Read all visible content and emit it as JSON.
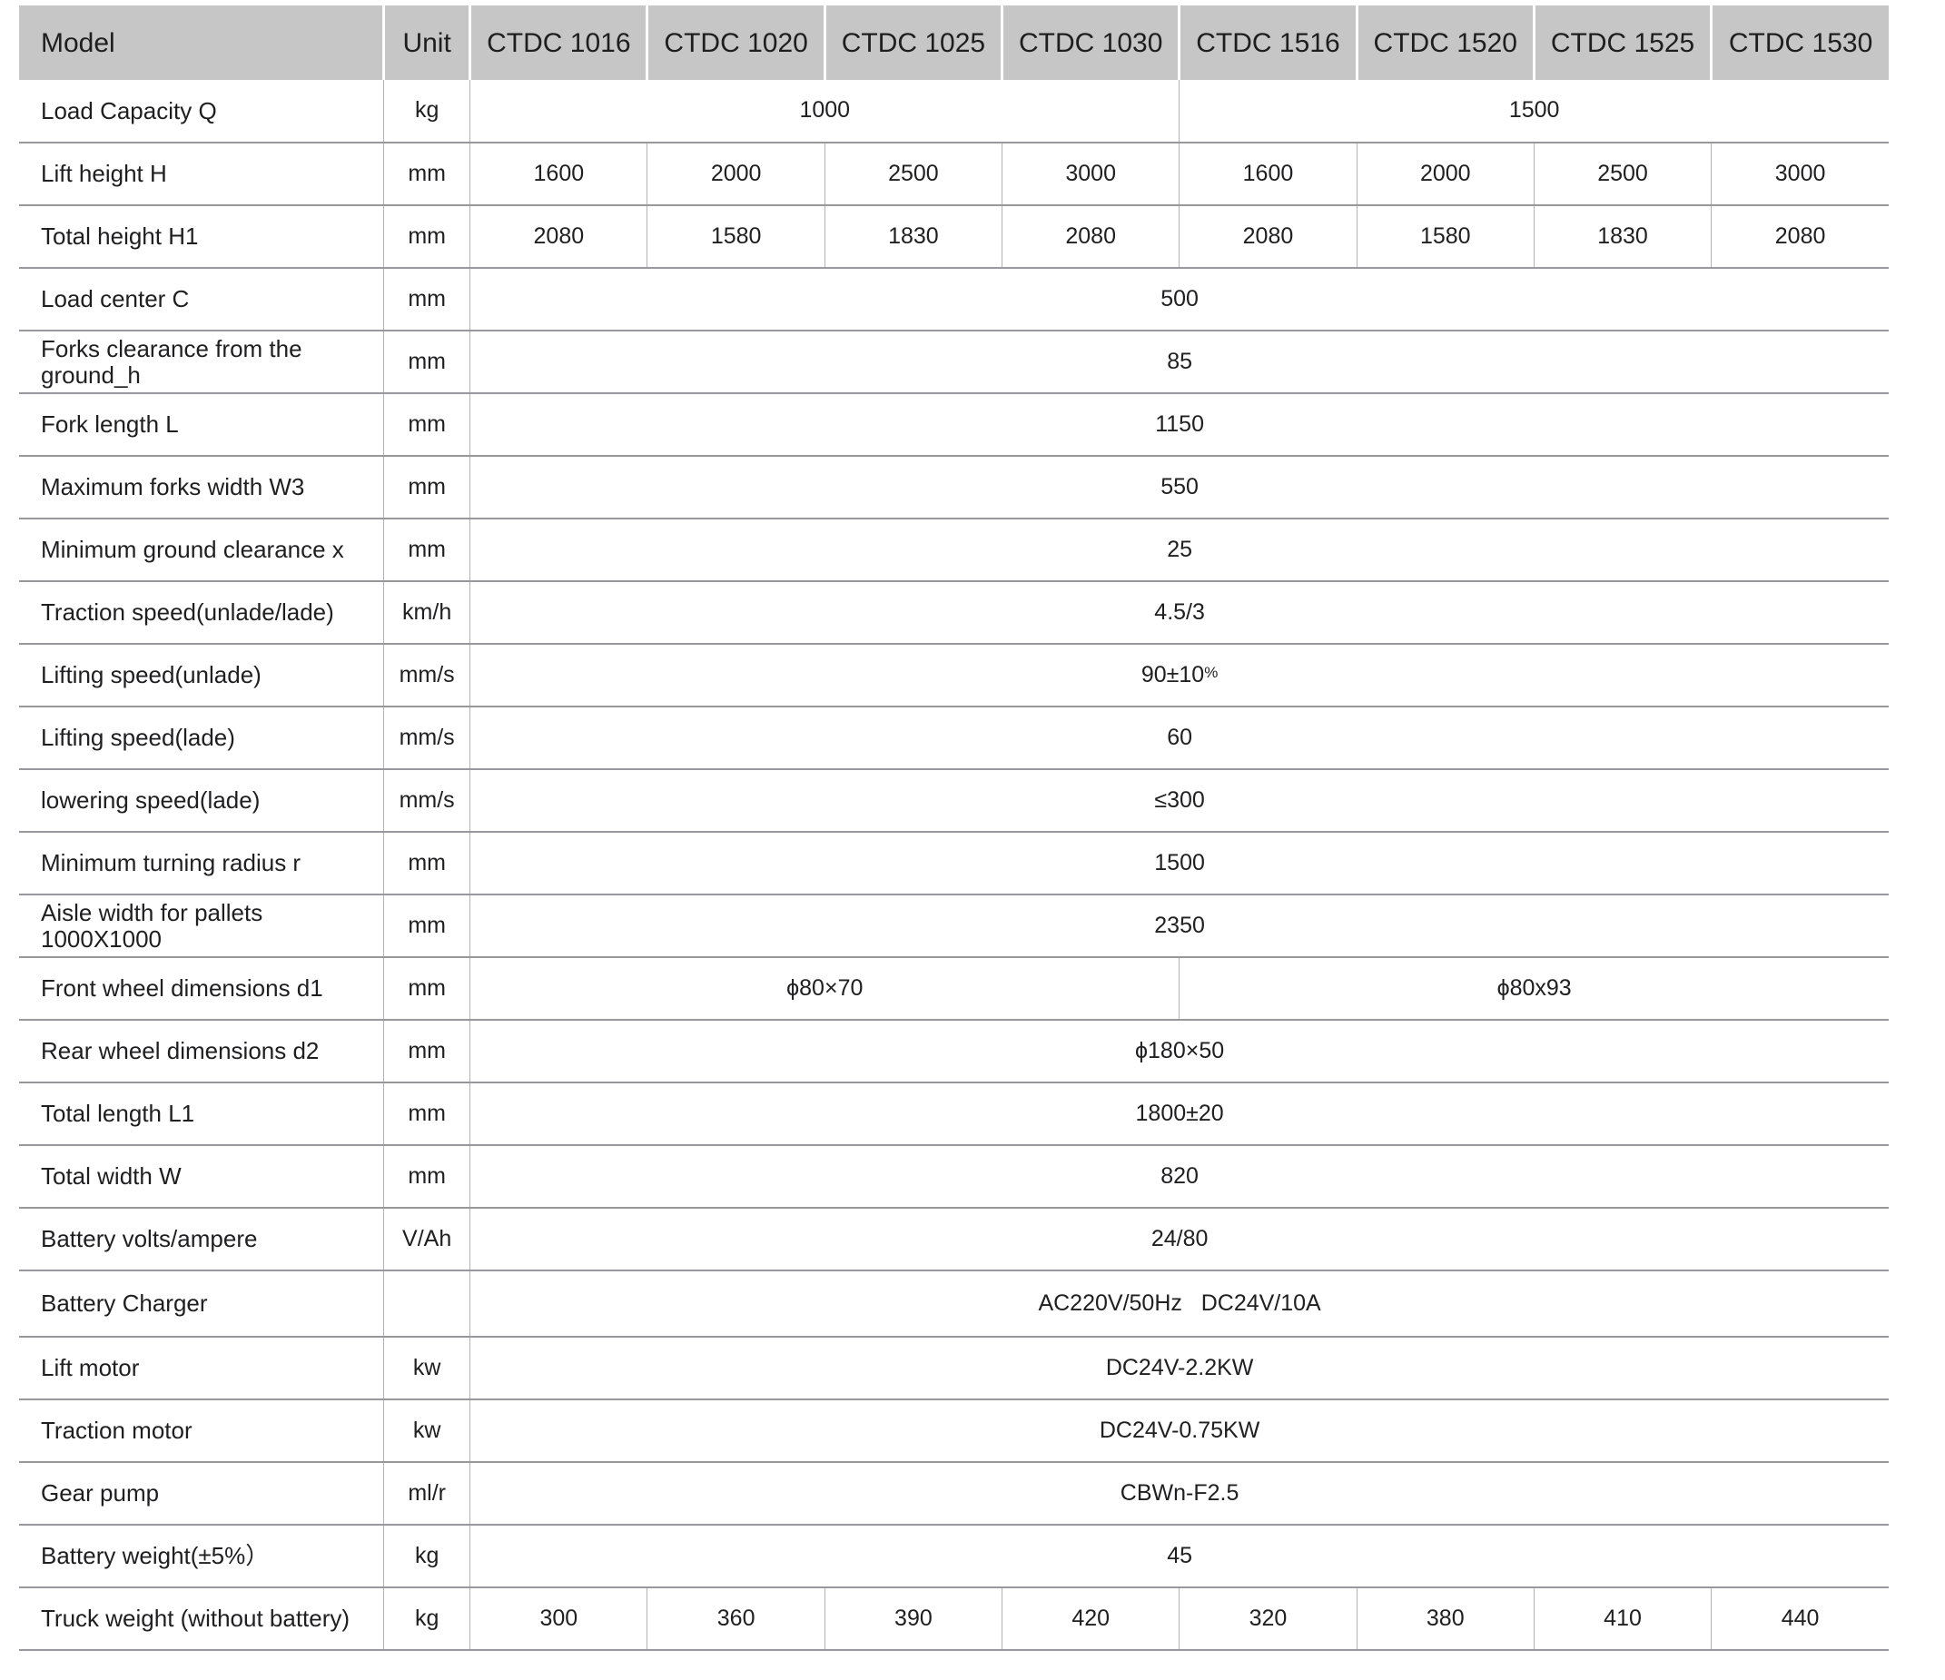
{
  "colors": {
    "header_bg": "#c6c6c7",
    "header_separator": "#ffffff",
    "row_line": "#98989c",
    "column_line": "#b4b4b8",
    "text": "#202022",
    "background": "#ffffff"
  },
  "table": {
    "columns": [
      "Model",
      "Unit",
      "CTDC 1016",
      "CTDC 1020",
      "CTDC 1025",
      "CTDC 1030",
      "CTDC 1516",
      "CTDC 1520",
      "CTDC 1525",
      "CTDC 1530"
    ],
    "rows": [
      {
        "label": "Load Capacity Q",
        "unit": "kg",
        "cells": [
          {
            "text": "1000",
            "span": 4
          },
          {
            "text": "1500",
            "span": 4
          }
        ]
      },
      {
        "label": "Lift height H",
        "unit": "mm",
        "cells": [
          {
            "text": "1600"
          },
          {
            "text": "2000"
          },
          {
            "text": "2500"
          },
          {
            "text": "3000"
          },
          {
            "text": "1600"
          },
          {
            "text": "2000"
          },
          {
            "text": "2500"
          },
          {
            "text": "3000"
          }
        ]
      },
      {
        "label": "Total height H1",
        "unit": "mm",
        "cells": [
          {
            "text": "2080"
          },
          {
            "text": "1580"
          },
          {
            "text": "1830"
          },
          {
            "text": "2080"
          },
          {
            "text": "2080"
          },
          {
            "text": "1580"
          },
          {
            "text": "1830"
          },
          {
            "text": "2080"
          }
        ]
      },
      {
        "label": "Load center C",
        "unit": "mm",
        "cells": [
          {
            "text": "500",
            "span": 8
          }
        ]
      },
      {
        "label": "Forks clearance from the ground_h",
        "unit": "mm",
        "cells": [
          {
            "text": "85",
            "span": 8
          }
        ]
      },
      {
        "label": "Fork length L",
        "unit": "mm",
        "cells": [
          {
            "text": "1150",
            "span": 8
          }
        ]
      },
      {
        "label": "Maximum forks width W3",
        "unit": "mm",
        "cells": [
          {
            "text": "550",
            "span": 8
          }
        ]
      },
      {
        "label": "Minimum ground clearance x",
        "unit": "mm",
        "cells": [
          {
            "text": "25",
            "span": 8
          }
        ]
      },
      {
        "label": "Traction speed(unlade/lade)",
        "unit": "km/h",
        "cells": [
          {
            "text": "4.5/3",
            "span": 8
          }
        ]
      },
      {
        "label": "Lifting speed(unlade)",
        "unit": "mm/s",
        "cells": [
          {
            "text": "90±10",
            "sup": "%",
            "span": 8
          }
        ]
      },
      {
        "label": "Lifting speed(lade)",
        "unit": "mm/s",
        "cells": [
          {
            "text": "60",
            "span": 8
          }
        ]
      },
      {
        "label": "lowering speed(lade)",
        "unit": "mm/s",
        "cells": [
          {
            "text": "≤300",
            "span": 8
          }
        ]
      },
      {
        "label": "Minimum turning radius r",
        "unit": "mm",
        "cells": [
          {
            "text": "1500",
            "span": 8
          }
        ]
      },
      {
        "label": "Aisle width for pallets 1000X1000",
        "unit": "mm",
        "cells": [
          {
            "text": "2350",
            "span": 8
          }
        ]
      },
      {
        "label": "Front wheel dimensions d1",
        "unit": "mm",
        "cells": [
          {
            "text": "ϕ80×70",
            "span": 4
          },
          {
            "text": "ϕ80x93",
            "span": 4
          }
        ]
      },
      {
        "label": "Rear wheel dimensions d2",
        "unit": "mm",
        "cells": [
          {
            "text": "ϕ180×50",
            "span": 8
          }
        ]
      },
      {
        "label": "Total length L1",
        "unit": "mm",
        "cells": [
          {
            "text": "1800±20",
            "span": 8
          }
        ]
      },
      {
        "label": "Total width W",
        "unit": "mm",
        "cells": [
          {
            "text": "820",
            "span": 8
          }
        ]
      },
      {
        "label": "Battery volts/ampere",
        "unit": "V/Ah",
        "cells": [
          {
            "text": "24/80",
            "span": 8
          }
        ]
      },
      {
        "label": "Battery Charger",
        "unit": "",
        "tall": true,
        "cells": [
          {
            "text": "AC220V/50Hz   DC24V/10A",
            "span": 8
          }
        ]
      },
      {
        "label": "Lift motor",
        "unit": "kw",
        "cells": [
          {
            "text": "DC24V-2.2KW",
            "span": 8
          }
        ]
      },
      {
        "label": "Traction motor",
        "unit": "kw",
        "cells": [
          {
            "text": "DC24V-0.75KW",
            "span": 8
          }
        ]
      },
      {
        "label": "Gear pump",
        "unit": "ml/r",
        "cells": [
          {
            "text": "CBWn-F2.5",
            "span": 8
          }
        ]
      },
      {
        "label": "Battery weight(±5%）",
        "unit": "kg",
        "cells": [
          {
            "text": "45",
            "span": 8
          }
        ]
      },
      {
        "label": "Truck weight (without battery)",
        "unit": "kg",
        "cells": [
          {
            "text": "300"
          },
          {
            "text": "360"
          },
          {
            "text": "390"
          },
          {
            "text": "420"
          },
          {
            "text": "320"
          },
          {
            "text": "380"
          },
          {
            "text": "410"
          },
          {
            "text": "440"
          }
        ]
      }
    ]
  }
}
